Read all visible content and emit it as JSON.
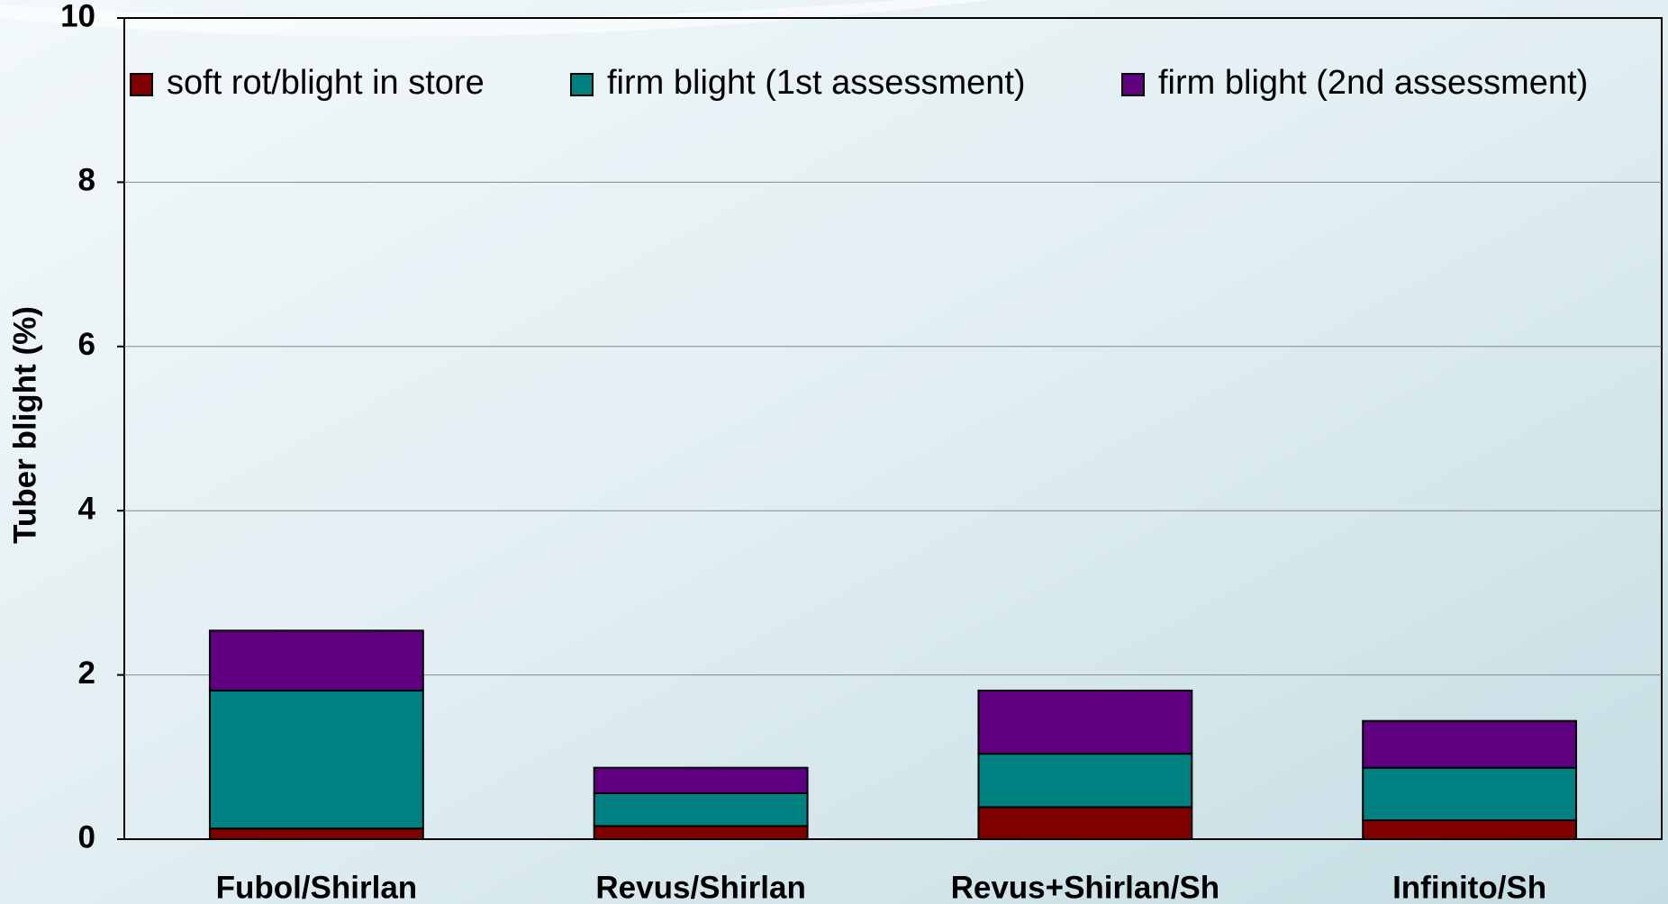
{
  "chart_data": {
    "type": "stacked_bar",
    "y_label": "Tuber blight (%)",
    "categories": [
      "Fubol/Shirlan",
      "Revus/Shirlan",
      "Revus+Shirlan/Sh",
      "Infinito/Sh"
    ],
    "series": [
      {
        "name": "soft rot/blight in store",
        "color": "#800000",
        "values": [
          0.13,
          0.16,
          0.39,
          0.23
        ]
      },
      {
        "name": "firm blight (1st assessment)",
        "color": "#008080",
        "values": [
          1.68,
          0.4,
          0.65,
          0.64
        ]
      },
      {
        "name": "firm blight (2nd assessment)",
        "color": "#5f0080",
        "values": [
          0.73,
          0.31,
          0.77,
          0.57
        ]
      }
    ],
    "ylim": [
      0,
      10
    ],
    "yticks": [
      0,
      2,
      4,
      6,
      8,
      10
    ],
    "grid": true,
    "legend": "top"
  }
}
